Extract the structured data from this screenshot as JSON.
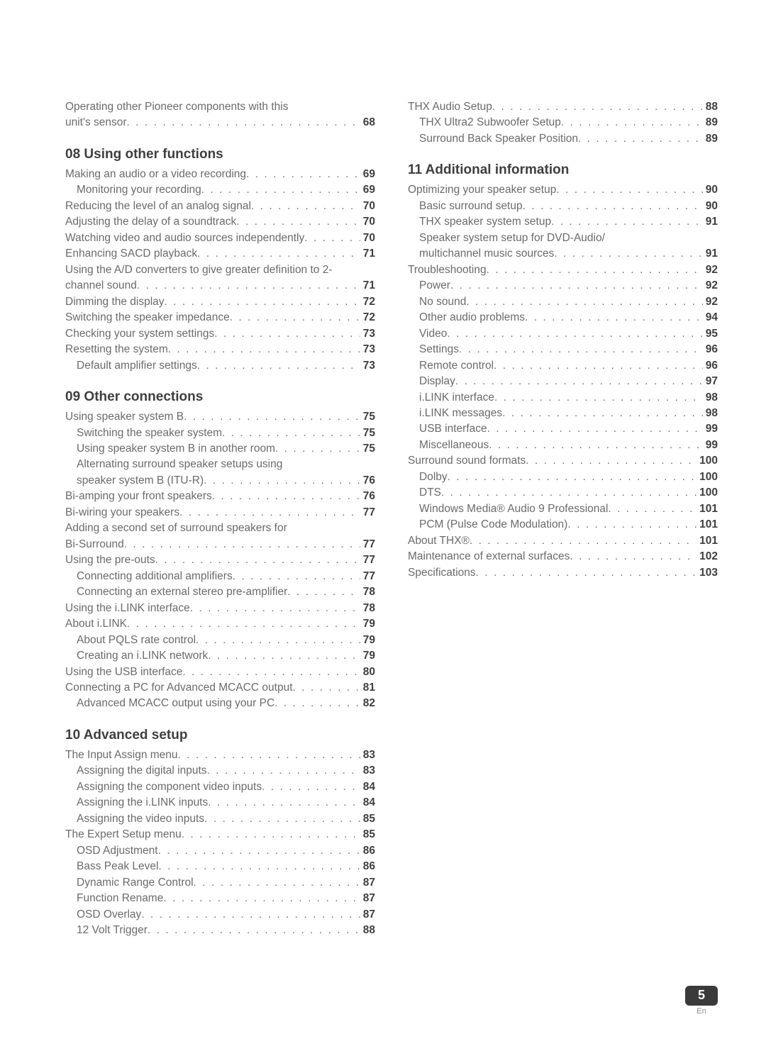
{
  "footer": {
    "page_number": "5",
    "lang": "En"
  },
  "left": {
    "pre": [
      {
        "type": "multi",
        "lines": [
          "Operating other Pioneer components with this"
        ],
        "last": "unit's sensor",
        "page": "68"
      }
    ],
    "sections": [
      {
        "title": "08 Using other functions",
        "entries": [
          {
            "label": "Making an audio or a video recording",
            "page": "69"
          },
          {
            "label": "Monitoring your recording",
            "page": "69",
            "indent": 1
          },
          {
            "label": "Reducing the level of an analog signal",
            "page": "70"
          },
          {
            "label": "Adjusting the delay of a soundtrack",
            "page": "70"
          },
          {
            "label": "Watching video and audio sources independently",
            "page": "70"
          },
          {
            "label": "Enhancing SACD playback",
            "page": "71"
          },
          {
            "type": "multi",
            "lines": [
              "Using the A/D converters to give greater definition to 2-"
            ],
            "last": "channel sound",
            "page": "71"
          },
          {
            "label": "Dimming the display",
            "page": "72"
          },
          {
            "label": "Switching the speaker impedance",
            "page": "72"
          },
          {
            "label": "Checking your system settings",
            "page": "73"
          },
          {
            "label": "Resetting the system",
            "page": "73"
          },
          {
            "label": "Default amplifier settings",
            "page": "73",
            "indent": 1
          }
        ]
      },
      {
        "title": "09 Other connections",
        "entries": [
          {
            "label": "Using speaker system B",
            "page": "75"
          },
          {
            "label": "Switching the speaker system",
            "page": "75",
            "indent": 1
          },
          {
            "label": "Using speaker system B in another room",
            "page": "75",
            "indent": 1
          },
          {
            "type": "multi",
            "indent": 1,
            "lines": [
              "Alternating surround speaker setups using"
            ],
            "last": "speaker system B (ITU-R)",
            "page": "76"
          },
          {
            "label": "Bi-amping your front speakers",
            "page": "76"
          },
          {
            "label": "Bi-wiring your speakers",
            "page": "77"
          },
          {
            "type": "multi",
            "lines": [
              "Adding a second set of surround speakers for"
            ],
            "last": "Bi-Surround",
            "page": "77"
          },
          {
            "label": "Using the pre-outs",
            "page": "77"
          },
          {
            "label": "Connecting additional amplifiers",
            "page": "77",
            "indent": 1
          },
          {
            "label": "Connecting an external stereo pre-amplifier",
            "page": "78",
            "indent": 1
          },
          {
            "label": "Using the i.LINK interface",
            "page": "78"
          },
          {
            "label": "About i.LINK",
            "page": "79"
          },
          {
            "label": "About PQLS rate control",
            "page": "79",
            "indent": 1
          },
          {
            "label": "Creating an i.LINK network",
            "page": "79",
            "indent": 1
          },
          {
            "label": "Using the USB interface",
            "page": "80"
          },
          {
            "label": "Connecting a PC for Advanced MCACC output",
            "page": "81"
          },
          {
            "label": "Advanced MCACC output using your PC",
            "page": "82",
            "indent": 1
          }
        ]
      },
      {
        "title": "10 Advanced setup",
        "entries": [
          {
            "label": "The Input Assign menu",
            "page": "83"
          },
          {
            "label": "Assigning the digital inputs",
            "page": "83",
            "indent": 1
          },
          {
            "label": "Assigning the component video inputs",
            "page": "84",
            "indent": 1
          },
          {
            "label": "Assigning the i.LINK inputs",
            "page": "84",
            "indent": 1
          },
          {
            "label": "Assigning the video inputs",
            "page": "85",
            "indent": 1
          },
          {
            "label": "The Expert Setup menu",
            "page": "85"
          },
          {
            "label": "OSD Adjustment",
            "page": "86",
            "indent": 1
          },
          {
            "label": "Bass Peak Level",
            "page": "86",
            "indent": 1
          },
          {
            "label": "Dynamic Range Control",
            "page": "87",
            "indent": 1
          },
          {
            "label": "Function Rename",
            "page": "87",
            "indent": 1
          },
          {
            "label": "OSD Overlay",
            "page": "87",
            "indent": 1
          },
          {
            "label": "12 Volt Trigger",
            "page": "88",
            "indent": 1
          }
        ]
      }
    ]
  },
  "right": {
    "pre": [
      {
        "label": "THX Audio Setup",
        "page": "88"
      },
      {
        "label": "THX Ultra2 Subwoofer Setup",
        "page": "89",
        "indent": 1
      },
      {
        "label": "Surround Back Speaker Position",
        "page": "89",
        "indent": 1
      }
    ],
    "sections": [
      {
        "title": "11 Additional information",
        "entries": [
          {
            "label": "Optimizing your speaker setup",
            "page": "90"
          },
          {
            "label": "Basic surround setup",
            "page": "90",
            "indent": 1
          },
          {
            "label": "THX speaker system setup",
            "page": "91",
            "indent": 1
          },
          {
            "type": "multi",
            "indent": 1,
            "lines": [
              "Speaker system setup for DVD-Audio/"
            ],
            "last": "multichannel music sources",
            "page": "91"
          },
          {
            "label": "Troubleshooting",
            "page": "92"
          },
          {
            "label": "Power",
            "page": "92",
            "indent": 1
          },
          {
            "label": "No sound",
            "page": "92",
            "indent": 1
          },
          {
            "label": "Other audio problems",
            "page": "94",
            "indent": 1
          },
          {
            "label": "Video",
            "page": "95",
            "indent": 1
          },
          {
            "label": "Settings",
            "page": "96",
            "indent": 1
          },
          {
            "label": "Remote control",
            "page": "96",
            "indent": 1
          },
          {
            "label": "Display",
            "page": "97",
            "indent": 1
          },
          {
            "label": "i.LINK interface",
            "page": "98",
            "indent": 1
          },
          {
            "label": "i.LINK messages",
            "page": "98",
            "indent": 1
          },
          {
            "label": "USB interface",
            "page": "99",
            "indent": 1
          },
          {
            "label": "Miscellaneous",
            "page": "99",
            "indent": 1
          },
          {
            "label": "Surround sound formats",
            "page": "100"
          },
          {
            "label": "Dolby",
            "page": "100",
            "indent": 1
          },
          {
            "label": "DTS",
            "page": "100",
            "indent": 1
          },
          {
            "label": "Windows Media® Audio 9 Professional",
            "page": "101",
            "indent": 1
          },
          {
            "label": "PCM (Pulse Code Modulation)",
            "page": "101",
            "indent": 1
          },
          {
            "label": "About THX®",
            "page": "101"
          },
          {
            "label": "Maintenance of external surfaces",
            "page": "102"
          },
          {
            "label": "Specifications",
            "page": "103"
          }
        ]
      }
    ]
  }
}
